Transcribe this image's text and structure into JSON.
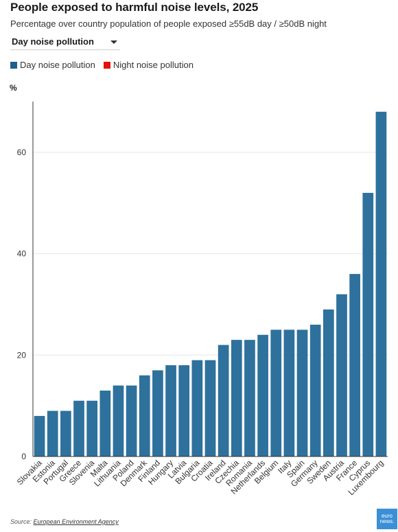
{
  "header": {
    "title": "People exposed to harmful noise levels, 2025",
    "subtitle": "Percentage over country population of people exposed ≥55dB day / ≥50dB night"
  },
  "dropdown": {
    "selected": "Day noise pollution"
  },
  "legend": [
    {
      "label": "Day noise pollution",
      "color": "#1f5f8b"
    },
    {
      "label": "Night noise pollution",
      "color": "#e3120b"
    }
  ],
  "footer": {
    "source_prefix": "Source:",
    "source_name": "European Environment Agency",
    "logo_line1": "euro",
    "logo_line2": "news."
  },
  "chart_data": {
    "type": "bar",
    "ylabel": "%",
    "ylim": [
      0,
      70
    ],
    "yticks": [
      0,
      20,
      40,
      60
    ],
    "bar_color": "#2e719c",
    "grid": true,
    "categories": [
      "Slovakia",
      "Estonia",
      "Portugal",
      "Greece",
      "Slovenia",
      "Malta",
      "Lithuania",
      "Poland",
      "Denmark",
      "Finland",
      "Hungary",
      "Latvia",
      "Bulgaria",
      "Croatia",
      "Ireland",
      "Czechia",
      "Romania",
      "Netherlands",
      "Belgium",
      "Italy",
      "Spain",
      "Germany",
      "Sweden",
      "Austria",
      "France",
      "Cyprus",
      "Luxembourg"
    ],
    "series": [
      {
        "values": [
          8,
          9,
          9,
          11,
          11,
          13,
          14,
          14,
          16,
          17,
          18,
          18,
          19,
          19,
          22,
          23,
          23,
          24,
          25,
          25,
          25,
          26,
          29,
          32,
          36,
          52,
          68
        ]
      }
    ]
  }
}
